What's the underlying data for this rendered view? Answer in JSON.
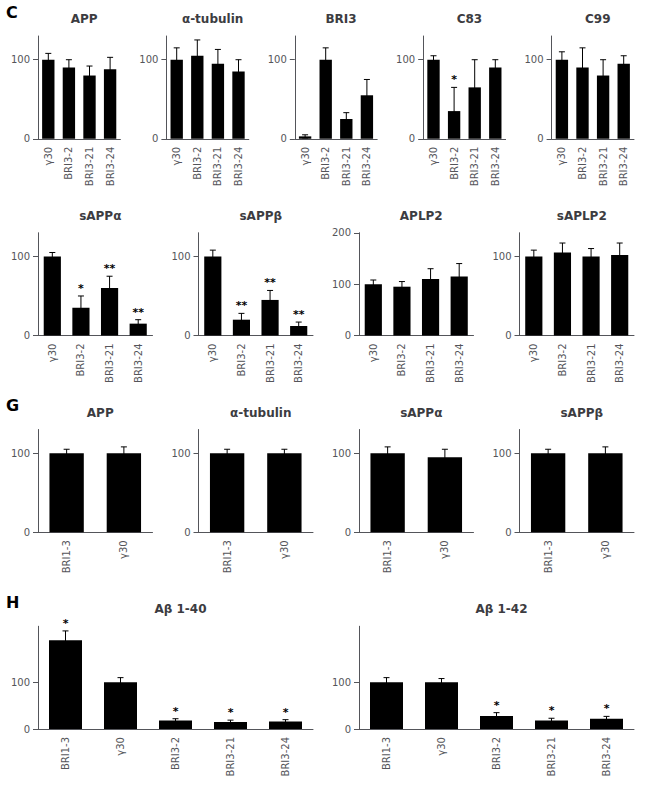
{
  "chart_data": [
    {
      "type": "bar",
      "title": "APP",
      "annotations": [
        "C"
      ],
      "categories": [
        "γ30",
        "BRI3-2",
        "BRI3-21",
        "BRI3-24"
      ],
      "values": [
        100,
        90,
        80,
        88
      ],
      "errors": [
        8,
        10,
        12,
        15
      ],
      "color": "#000000",
      "ylim": [
        0,
        130
      ],
      "yticks": [
        0,
        100
      ],
      "grid": false
    },
    {
      "type": "bar",
      "title": "α-tubulin",
      "categories": [
        "γ30",
        "BRI3-2",
        "BRI3-21",
        "BRI3-24"
      ],
      "values": [
        100,
        105,
        95,
        85
      ],
      "errors": [
        15,
        20,
        18,
        15
      ],
      "color": "#000000",
      "ylim": [
        0,
        130
      ],
      "yticks": [
        0,
        100
      ],
      "grid": false
    },
    {
      "type": "bar",
      "title": "BRI3",
      "categories": [
        "γ30",
        "BRI3-2",
        "BRI3-21",
        "BRI3-24"
      ],
      "values": [
        3,
        100,
        25,
        55
      ],
      "errors": [
        2,
        15,
        8,
        20
      ],
      "color": "#000000",
      "ylim": [
        0,
        130
      ],
      "yticks": [
        0,
        100
      ],
      "grid": false
    },
    {
      "type": "bar",
      "title": "C83",
      "categories": [
        "γ30",
        "BRI3-2",
        "BRI3-21",
        "BRI3-24"
      ],
      "values": [
        100,
        35,
        65,
        90
      ],
      "errors": [
        5,
        30,
        35,
        10
      ],
      "stars": [
        null,
        "*",
        null,
        null
      ],
      "color": "#000000",
      "ylim": [
        0,
        130
      ],
      "yticks": [
        0,
        100
      ],
      "grid": false
    },
    {
      "type": "bar",
      "title": "C99",
      "categories": [
        "γ30",
        "BRI3-2",
        "BRI3-21",
        "BRI3-24"
      ],
      "values": [
        100,
        90,
        80,
        95
      ],
      "errors": [
        10,
        25,
        20,
        10
      ],
      "color": "#000000",
      "ylim": [
        0,
        130
      ],
      "yticks": [
        0,
        100
      ],
      "grid": false
    },
    {
      "type": "bar",
      "title": "sAPPα",
      "categories": [
        "γ30",
        "BRI3-2",
        "BRI3-21",
        "BRI3-24"
      ],
      "values": [
        100,
        35,
        60,
        15
      ],
      "errors": [
        5,
        15,
        15,
        5
      ],
      "stars": [
        null,
        "*",
        "**",
        "**"
      ],
      "color": "#000000",
      "ylim": [
        0,
        130
      ],
      "yticks": [
        0,
        100
      ],
      "grid": false
    },
    {
      "type": "bar",
      "title": "sAPPβ",
      "categories": [
        "γ30",
        "BRI3-2",
        "BRI3-21",
        "BRI3-24"
      ],
      "values": [
        100,
        20,
        45,
        12
      ],
      "errors": [
        8,
        8,
        12,
        5
      ],
      "stars": [
        null,
        "**",
        "**",
        "**"
      ],
      "color": "#000000",
      "ylim": [
        0,
        130
      ],
      "yticks": [
        0,
        100
      ],
      "grid": false
    },
    {
      "type": "bar",
      "title": "APLP2",
      "categories": [
        "γ30",
        "BRI3-2",
        "BRI3-21",
        "BRI3-24"
      ],
      "values": [
        100,
        95,
        110,
        115
      ],
      "errors": [
        8,
        10,
        20,
        25
      ],
      "color": "#000000",
      "ylim": [
        0,
        200
      ],
      "yticks": [
        0,
        100,
        200
      ],
      "grid": false
    },
    {
      "type": "bar",
      "title": "sAPLP2",
      "categories": [
        "γ30",
        "BRI3-2",
        "BRI3-21",
        "BRI3-24"
      ],
      "values": [
        100,
        105,
        100,
        102
      ],
      "errors": [
        8,
        12,
        10,
        15
      ],
      "color": "#000000",
      "ylim": [
        0,
        130
      ],
      "yticks": [
        0,
        100
      ],
      "grid": false
    },
    {
      "type": "bar",
      "title": "APP",
      "annotations": [
        "G"
      ],
      "categories": [
        "BRI1-3",
        "γ30"
      ],
      "values": [
        100,
        100
      ],
      "errors": [
        5,
        8
      ],
      "color": "#000000",
      "ylim": [
        0,
        130
      ],
      "yticks": [
        0,
        100
      ],
      "grid": false
    },
    {
      "type": "bar",
      "title": "α-tubulin",
      "categories": [
        "BRI1-3",
        "γ30"
      ],
      "values": [
        100,
        100
      ],
      "errors": [
        5,
        5
      ],
      "color": "#000000",
      "ylim": [
        0,
        130
      ],
      "yticks": [
        0,
        100
      ],
      "grid": false
    },
    {
      "type": "bar",
      "title": "sAPPα",
      "categories": [
        "BRI1-3",
        "γ30"
      ],
      "values": [
        100,
        95
      ],
      "errors": [
        8,
        10
      ],
      "color": "#000000",
      "ylim": [
        0,
        130
      ],
      "yticks": [
        0,
        100
      ],
      "grid": false
    },
    {
      "type": "bar",
      "title": "sAPPβ",
      "categories": [
        "BRI1-3",
        "γ30"
      ],
      "values": [
        100,
        100
      ],
      "errors": [
        5,
        8
      ],
      "color": "#000000",
      "ylim": [
        0,
        130
      ],
      "yticks": [
        0,
        100
      ],
      "grid": false
    },
    {
      "type": "bar",
      "title": "Aβ 1-40",
      "annotations": [
        "H"
      ],
      "categories": [
        "BRI1-3",
        "γ30",
        "BRI3-2",
        "BRI3-21",
        "BRI3-24"
      ],
      "values": [
        190,
        100,
        18,
        15,
        16
      ],
      "errors": [
        20,
        10,
        4,
        4,
        4
      ],
      "stars": [
        "*",
        null,
        "*",
        "*",
        "*"
      ],
      "color": "#000000",
      "ylim": [
        0,
        220
      ],
      "yticks": [
        0,
        100
      ],
      "grid": false
    },
    {
      "type": "bar",
      "title": "Aβ 1-42",
      "categories": [
        "BRI1-3",
        "γ30",
        "BRI3-2",
        "BRI3-21",
        "BRI3-24"
      ],
      "values": [
        100,
        100,
        28,
        18,
        22
      ],
      "errors": [
        10,
        8,
        7,
        5,
        5
      ],
      "stars": [
        null,
        null,
        "*",
        "*",
        "*"
      ],
      "color": "#000000",
      "ylim": [
        0,
        220
      ],
      "yticks": [
        0,
        100
      ],
      "grid": false
    }
  ]
}
